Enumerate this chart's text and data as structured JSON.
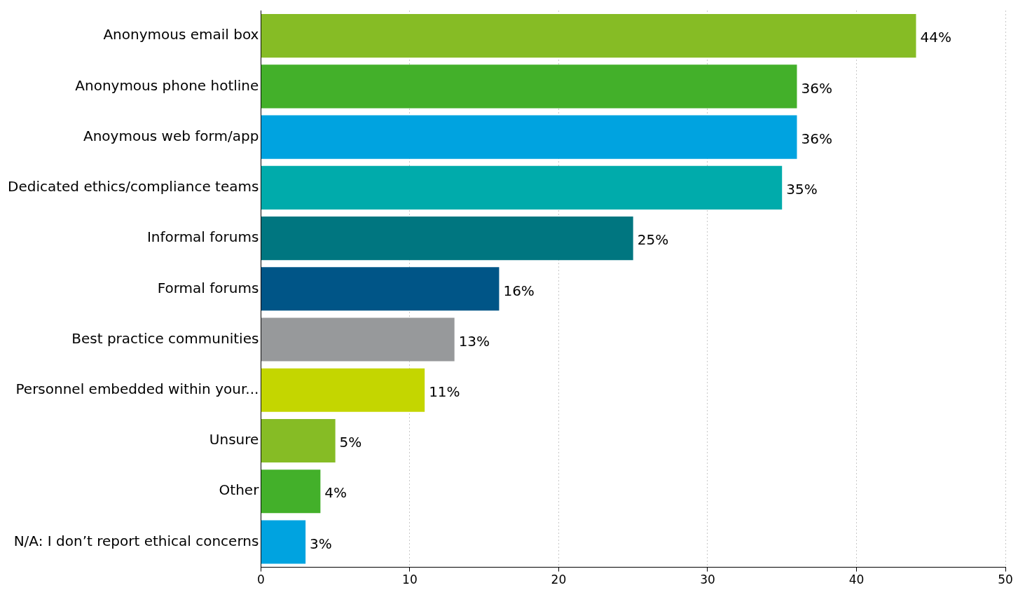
{
  "chart_data": {
    "type": "bar",
    "orientation": "horizontal",
    "categories": [
      "Anonymous email box",
      "Anonymous phone hotline",
      "Anoymous web form/app",
      "Dedicated ethics/compliance teams",
      "Informal forums",
      "Formal forums",
      "Best practice communities",
      "Personnel embedded within your...",
      "Unsure",
      "Other",
      "N/A: I don’t report ethical concerns"
    ],
    "values": [
      44,
      36,
      36,
      35,
      25,
      16,
      13,
      11,
      5,
      4,
      3
    ],
    "colors": [
      "#86bc25",
      "#43b02a",
      "#00a3e0",
      "#00abab",
      "#007680",
      "#005587",
      "#97999b",
      "#c4d600",
      "#86bc25",
      "#43b02a",
      "#00a3e0"
    ],
    "value_labels": [
      "44%",
      "36%",
      "36%",
      "35%",
      "25%",
      "16%",
      "13%",
      "11%",
      "5%",
      "4%",
      "3%"
    ],
    "xlim": [
      0,
      50
    ],
    "xticks": [
      0,
      10,
      20,
      30,
      40,
      50
    ],
    "grid": "x",
    "legend": false
  }
}
